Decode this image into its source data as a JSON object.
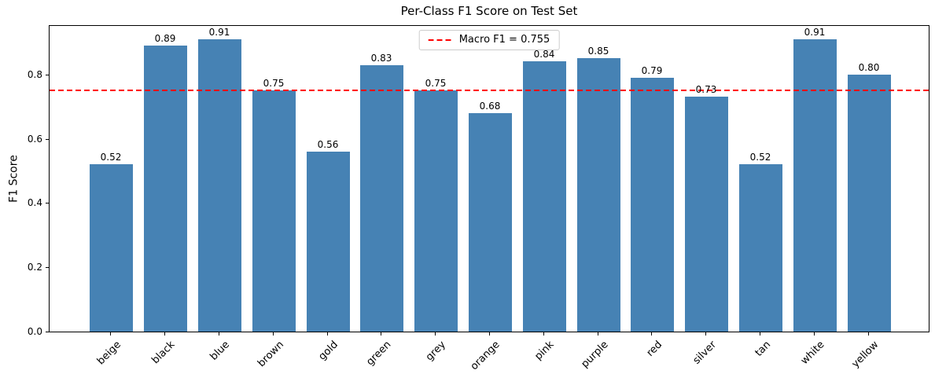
{
  "chart_data": {
    "type": "bar",
    "title": "Per-Class F1 Score on Test Set",
    "xlabel": "",
    "ylabel": "F1 Score",
    "categories": [
      "beige",
      "black",
      "blue",
      "brown",
      "gold",
      "green",
      "grey",
      "orange",
      "pink",
      "purple",
      "red",
      "silver",
      "tan",
      "white",
      "yellow"
    ],
    "values": [
      0.52,
      0.89,
      0.91,
      0.75,
      0.56,
      0.83,
      0.75,
      0.68,
      0.84,
      0.85,
      0.79,
      0.73,
      0.52,
      0.91,
      0.8
    ],
    "bar_value_labels": [
      "0.52",
      "0.89",
      "0.91",
      "0.75",
      "0.56",
      "0.83",
      "0.75",
      "0.68",
      "0.84",
      "0.85",
      "0.79",
      "0.73",
      "0.52",
      "0.91",
      "0.80"
    ],
    "yticks": [
      0.0,
      0.2,
      0.4,
      0.6,
      0.8
    ],
    "ytick_labels": [
      "0.0",
      "0.2",
      "0.4",
      "0.6",
      "0.8"
    ],
    "ylim": [
      0.0,
      0.956
    ],
    "grid": false,
    "bar_color": "#4682b4",
    "axis_color": "#000000",
    "background_color": "#ffffff",
    "reference_line": {
      "value": 0.755,
      "color": "#ff0000",
      "style": "dashed",
      "label": "Macro F1 = 0.755"
    },
    "legend": {
      "position": "upper center",
      "entries": [
        {
          "label": "Macro F1 = 0.755",
          "color": "#ff0000",
          "linestyle": "dashed"
        }
      ]
    }
  }
}
